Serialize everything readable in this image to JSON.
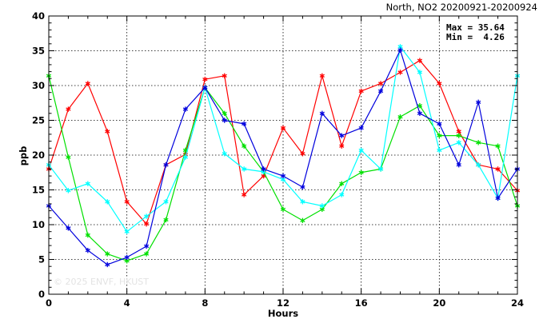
{
  "header": {
    "title": "North, NO2 20200921-20200924"
  },
  "stats": {
    "max_label": "Max = 35.64",
    "min_label": "Min =  4.26"
  },
  "watermark": "© 2025  ENVF, HKUST",
  "chart_data": {
    "type": "line",
    "title": "North, NO2 20200921-20200924",
    "xlabel": "Hours",
    "ylabel": "ppb",
    "xlim": [
      0,
      24
    ],
    "ylim": [
      0,
      40
    ],
    "x_ticks": [
      0,
      4,
      8,
      12,
      16,
      20,
      24
    ],
    "y_ticks": [
      0,
      5,
      10,
      15,
      20,
      25,
      30,
      35,
      40
    ],
    "grid": true,
    "x": [
      0,
      1,
      2,
      3,
      4,
      5,
      6,
      7,
      8,
      9,
      10,
      11,
      12,
      13,
      14,
      15,
      16,
      17,
      18,
      19,
      20,
      21,
      22,
      23,
      24
    ],
    "series": [
      {
        "color": "#ff0000",
        "values": [
          18.0,
          26.6,
          30.3,
          23.4,
          13.3,
          10.1,
          18.6,
          20.1,
          30.9,
          31.4,
          14.3,
          17.0,
          23.9,
          20.2,
          31.4,
          21.3,
          29.2,
          30.3,
          31.9,
          33.6,
          30.3,
          23.4,
          18.6,
          18.0,
          14.9
        ]
      },
      {
        "color": "#00e000",
        "values": [
          31.4,
          19.7,
          8.5,
          5.8,
          4.8,
          5.8,
          10.7,
          20.7,
          29.7,
          26.0,
          21.3,
          17.6,
          12.2,
          10.6,
          12.2,
          15.9,
          17.5,
          18.0,
          25.5,
          27.1,
          22.8,
          22.8,
          21.8,
          21.3,
          12.7
        ]
      },
      {
        "color": "#00ffff",
        "values": [
          18.6,
          14.9,
          15.9,
          13.3,
          9.0,
          11.2,
          13.3,
          19.7,
          29.7,
          20.2,
          18.0,
          17.6,
          16.5,
          13.3,
          12.7,
          14.3,
          20.7,
          18.0,
          35.6,
          31.9,
          20.7,
          21.8,
          18.6,
          13.8,
          31.4
        ]
      },
      {
        "color": "#0000dd",
        "values": [
          12.7,
          9.5,
          6.3,
          4.26,
          5.3,
          6.9,
          18.6,
          26.6,
          29.7,
          25.0,
          24.5,
          18.0,
          17.0,
          15.4,
          26.0,
          22.8,
          23.9,
          29.2,
          35.1,
          26.0,
          24.5,
          18.6,
          27.6,
          13.8,
          18.0
        ]
      }
    ]
  }
}
